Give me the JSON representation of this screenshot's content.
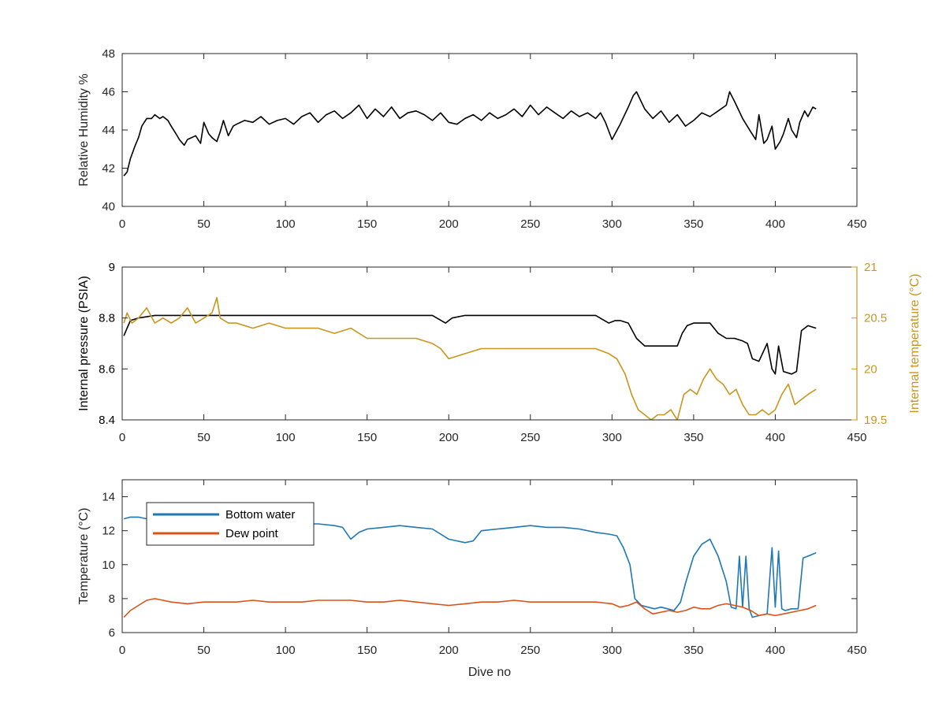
{
  "colors": {
    "black": "#000000",
    "axis": "#262626",
    "pressure": "#000000",
    "internal_temp": "#c8961e",
    "bottom_water": "#1f77b4",
    "dew_point": "#d95319"
  },
  "chart_data": [
    {
      "type": "line",
      "ylabel": "Relative Humidity %",
      "xlabel": "",
      "xlim": [
        0,
        450
      ],
      "ylim": [
        40,
        48
      ],
      "xticks": [
        0,
        50,
        100,
        150,
        200,
        250,
        300,
        350,
        400,
        450
      ],
      "yticks": [
        40,
        42,
        44,
        46,
        48
      ],
      "series": [
        {
          "color": "black",
          "x": [
            1,
            3,
            5,
            8,
            10,
            12,
            15,
            18,
            20,
            23,
            25,
            28,
            30,
            33,
            35,
            38,
            40,
            45,
            48,
            50,
            53,
            55,
            58,
            60,
            62,
            65,
            68,
            70,
            75,
            80,
            85,
            90,
            95,
            100,
            105,
            110,
            115,
            120,
            125,
            130,
            135,
            140,
            145,
            150,
            155,
            160,
            165,
            170,
            175,
            180,
            185,
            190,
            195,
            200,
            205,
            210,
            215,
            220,
            225,
            230,
            235,
            240,
            245,
            250,
            255,
            260,
            265,
            270,
            275,
            280,
            285,
            290,
            293,
            296,
            300,
            305,
            310,
            313,
            315,
            320,
            325,
            330,
            335,
            340,
            345,
            350,
            355,
            360,
            365,
            370,
            372,
            375,
            380,
            385,
            388,
            390,
            393,
            395,
            398,
            400,
            403,
            405,
            408,
            410,
            413,
            415,
            418,
            420,
            423,
            425
          ],
          "y": [
            41.6,
            41.8,
            42.5,
            43.2,
            43.6,
            44.2,
            44.6,
            44.6,
            44.8,
            44.6,
            44.7,
            44.5,
            44.2,
            43.8,
            43.5,
            43.2,
            43.5,
            43.7,
            43.3,
            44.4,
            43.8,
            43.6,
            43.4,
            43.9,
            44.5,
            43.7,
            44.2,
            44.3,
            44.5,
            44.4,
            44.7,
            44.3,
            44.5,
            44.6,
            44.3,
            44.7,
            44.9,
            44.4,
            44.8,
            45.0,
            44.6,
            44.9,
            45.3,
            44.6,
            45.1,
            44.7,
            45.2,
            44.6,
            44.9,
            45.0,
            44.8,
            44.5,
            44.9,
            44.4,
            44.3,
            44.6,
            44.8,
            44.5,
            44.9,
            44.6,
            44.8,
            45.1,
            44.7,
            45.3,
            44.8,
            45.2,
            44.9,
            44.6,
            45.0,
            44.7,
            44.9,
            44.6,
            44.9,
            44.4,
            43.5,
            44.3,
            45.2,
            45.8,
            46.0,
            45.1,
            44.6,
            45.0,
            44.4,
            44.8,
            44.2,
            44.5,
            44.9,
            44.7,
            45.0,
            45.3,
            46.0,
            45.5,
            44.6,
            43.9,
            43.5,
            44.8,
            43.3,
            43.5,
            44.2,
            43.0,
            43.4,
            43.8,
            44.6,
            44.0,
            43.6,
            44.4,
            45.0,
            44.7,
            45.2,
            45.1
          ]
        }
      ]
    },
    {
      "type": "line",
      "ylabel": "Internal pressure (PSIA)",
      "y2label": "Internal temperature (°C)",
      "xlabel": "",
      "xlim": [
        0,
        450
      ],
      "ylim": [
        8.4,
        9
      ],
      "y2lim": [
        19.5,
        21
      ],
      "xticks": [
        0,
        50,
        100,
        150,
        200,
        250,
        300,
        350,
        400,
        450
      ],
      "yticks": [
        8.4,
        8.6,
        8.8,
        9
      ],
      "y2ticks": [
        19.5,
        20,
        20.5,
        21
      ],
      "series": [
        {
          "name": "",
          "axis": "left",
          "color": "pressure",
          "x": [
            1,
            3,
            5,
            10,
            20,
            30,
            40,
            50,
            60,
            70,
            80,
            90,
            100,
            110,
            120,
            130,
            140,
            150,
            160,
            170,
            180,
            190,
            198,
            202,
            210,
            220,
            230,
            240,
            250,
            260,
            270,
            280,
            290,
            298,
            302,
            305,
            310,
            315,
            320,
            330,
            340,
            343,
            346,
            350,
            355,
            360,
            365,
            370,
            375,
            380,
            383,
            386,
            390,
            395,
            398,
            400,
            402,
            405,
            410,
            413,
            416,
            420,
            425
          ],
          "y": [
            8.73,
            8.76,
            8.79,
            8.8,
            8.81,
            8.81,
            8.81,
            8.81,
            8.81,
            8.81,
            8.81,
            8.81,
            8.81,
            8.81,
            8.81,
            8.81,
            8.81,
            8.81,
            8.81,
            8.81,
            8.81,
            8.81,
            8.78,
            8.8,
            8.81,
            8.81,
            8.81,
            8.81,
            8.81,
            8.81,
            8.81,
            8.81,
            8.81,
            8.78,
            8.79,
            8.79,
            8.78,
            8.72,
            8.69,
            8.69,
            8.69,
            8.74,
            8.77,
            8.78,
            8.78,
            8.78,
            8.74,
            8.72,
            8.72,
            8.71,
            8.7,
            8.64,
            8.63,
            8.7,
            8.6,
            8.58,
            8.69,
            8.59,
            8.58,
            8.59,
            8.75,
            8.77,
            8.76
          ]
        },
        {
          "name": "",
          "axis": "right",
          "color": "internal_temp",
          "x": [
            1,
            3,
            6,
            10,
            15,
            20,
            25,
            30,
            35,
            40,
            45,
            50,
            55,
            58,
            60,
            65,
            70,
            80,
            90,
            100,
            110,
            120,
            130,
            140,
            150,
            160,
            170,
            180,
            190,
            195,
            200,
            210,
            220,
            230,
            240,
            250,
            260,
            270,
            280,
            290,
            298,
            303,
            308,
            312,
            316,
            320,
            324,
            328,
            332,
            336,
            340,
            344,
            348,
            352,
            356,
            360,
            364,
            368,
            372,
            376,
            380,
            384,
            388,
            392,
            396,
            400,
            404,
            408,
            412,
            416,
            420,
            425
          ],
          "y": [
            20.45,
            20.55,
            20.45,
            20.5,
            20.6,
            20.45,
            20.5,
            20.45,
            20.5,
            20.6,
            20.45,
            20.5,
            20.55,
            20.7,
            20.5,
            20.45,
            20.45,
            20.4,
            20.45,
            20.4,
            20.4,
            20.4,
            20.35,
            20.4,
            20.3,
            20.3,
            20.3,
            20.3,
            20.25,
            20.2,
            20.1,
            20.15,
            20.2,
            20.2,
            20.2,
            20.2,
            20.2,
            20.2,
            20.2,
            20.2,
            20.15,
            20.1,
            19.95,
            19.75,
            19.6,
            19.55,
            19.5,
            19.55,
            19.55,
            19.6,
            19.5,
            19.75,
            19.8,
            19.75,
            19.9,
            20.0,
            19.9,
            19.85,
            19.75,
            19.8,
            19.65,
            19.55,
            19.55,
            19.6,
            19.55,
            19.6,
            19.75,
            19.85,
            19.65,
            19.7,
            19.75,
            19.8
          ]
        }
      ]
    },
    {
      "type": "line",
      "ylabel": "Temperature (°C)",
      "xlabel": "Dive no",
      "xlim": [
        0,
        450
      ],
      "ylim": [
        6,
        15
      ],
      "xticks": [
        0,
        50,
        100,
        150,
        200,
        250,
        300,
        350,
        400,
        450
      ],
      "yticks": [
        6,
        8,
        10,
        12,
        14
      ],
      "legend": {
        "location": "top-left",
        "entries": [
          "Bottom water",
          "Dew point"
        ]
      },
      "series": [
        {
          "name": "Bottom water",
          "color": "bottom_water",
          "x": [
            1,
            5,
            10,
            15,
            20,
            30,
            40,
            50,
            60,
            70,
            80,
            90,
            100,
            110,
            120,
            130,
            135,
            140,
            145,
            150,
            160,
            170,
            180,
            190,
            200,
            205,
            210,
            215,
            220,
            230,
            240,
            250,
            260,
            270,
            280,
            290,
            298,
            303,
            307,
            311,
            314,
            318,
            322,
            326,
            330,
            334,
            338,
            342,
            345,
            350,
            355,
            360,
            365,
            370,
            373,
            376,
            378,
            380,
            382,
            384,
            386,
            390,
            395,
            398,
            400,
            402,
            404,
            406,
            410,
            414,
            417,
            420,
            425
          ],
          "y": [
            12.7,
            12.8,
            12.8,
            12.7,
            12.6,
            12.6,
            12.5,
            12.5,
            12.5,
            12.5,
            12.5,
            12.5,
            12.4,
            12.4,
            12.4,
            12.3,
            12.2,
            11.5,
            11.9,
            12.1,
            12.2,
            12.3,
            12.2,
            12.1,
            11.5,
            11.4,
            11.3,
            11.4,
            12.0,
            12.1,
            12.2,
            12.3,
            12.2,
            12.2,
            12.1,
            11.9,
            11.8,
            11.7,
            11.0,
            10.0,
            8.0,
            7.6,
            7.5,
            7.4,
            7.5,
            7.4,
            7.3,
            7.8,
            8.9,
            10.5,
            11.2,
            11.5,
            10.5,
            9.0,
            7.5,
            7.4,
            10.5,
            7.5,
            10.5,
            7.4,
            6.9,
            7.0,
            7.1,
            11.0,
            7.5,
            10.8,
            7.4,
            7.3,
            7.4,
            7.4,
            10.4,
            10.5,
            10.7
          ]
        },
        {
          "name": "Dew point",
          "color": "dew_point",
          "x": [
            1,
            5,
            10,
            15,
            20,
            25,
            30,
            40,
            50,
            60,
            70,
            80,
            90,
            100,
            110,
            120,
            130,
            140,
            150,
            160,
            170,
            180,
            190,
            200,
            210,
            220,
            230,
            240,
            250,
            260,
            270,
            280,
            290,
            300,
            305,
            310,
            315,
            320,
            325,
            330,
            335,
            340,
            345,
            350,
            355,
            360,
            365,
            370,
            375,
            380,
            385,
            390,
            395,
            400,
            405,
            410,
            415,
            420,
            425
          ],
          "y": [
            6.9,
            7.3,
            7.6,
            7.9,
            8.0,
            7.9,
            7.8,
            7.7,
            7.8,
            7.8,
            7.8,
            7.9,
            7.8,
            7.8,
            7.8,
            7.9,
            7.9,
            7.9,
            7.8,
            7.8,
            7.9,
            7.8,
            7.7,
            7.6,
            7.7,
            7.8,
            7.8,
            7.9,
            7.8,
            7.8,
            7.8,
            7.8,
            7.8,
            7.7,
            7.5,
            7.6,
            7.8,
            7.4,
            7.1,
            7.2,
            7.3,
            7.2,
            7.3,
            7.5,
            7.4,
            7.4,
            7.6,
            7.7,
            7.6,
            7.5,
            7.3,
            7.0,
            7.1,
            7.0,
            7.1,
            7.2,
            7.3,
            7.4,
            7.6
          ]
        }
      ]
    }
  ]
}
